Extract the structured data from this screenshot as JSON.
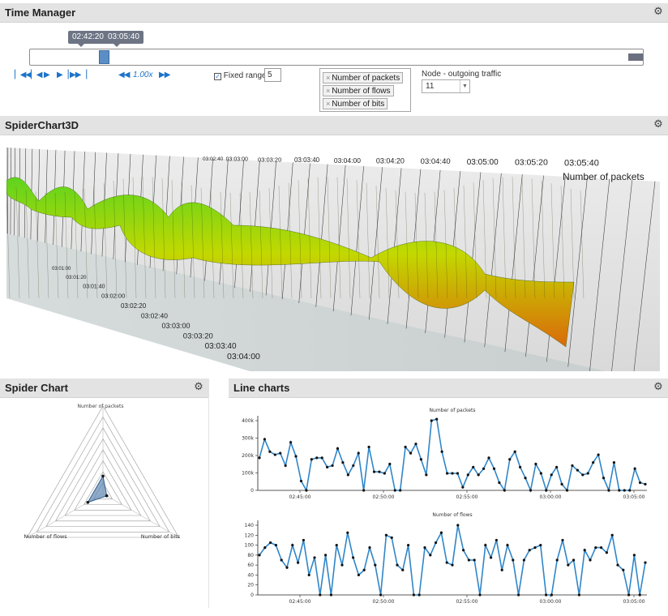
{
  "time_manager": {
    "title": "Time Manager",
    "range_start": "02:42:20",
    "range_end": "03:05:40",
    "speed": "1.00x",
    "fixed_range_label": "Fixed range:",
    "fixed_range_value": "5",
    "metrics": [
      "Number of packets",
      "Number of flows",
      "Number of bits"
    ],
    "node_label": "Node - outgoing traffic",
    "node_value": "11"
  },
  "spider3d": {
    "title": "SpiderChart3D",
    "top_times": [
      "03:02:40",
      "03:03:00",
      "03:03:20",
      "03:03:40",
      "03:04:00",
      "03:04:20",
      "03:04:40",
      "03:05:00",
      "03:05:20",
      "03:05:40"
    ],
    "metric_label": "Number of packets",
    "left_times": [
      "03:01:00",
      "03:01:20",
      "03:01:40",
      "03:02:00",
      "03:02:20",
      "03:02:40",
      "03:03:00",
      "03:03:20",
      "03:03:40",
      "03:04:00"
    ]
  },
  "spider": {
    "title": "Spider Chart",
    "axes": [
      "Number of packets",
      "Number of flows",
      "Number of bits"
    ]
  },
  "line_charts": {
    "title": "Line charts",
    "x_ticks": [
      "02:45:00",
      "02:50:00",
      "02:55:00",
      "03:00:00",
      "03:05:00"
    ]
  },
  "chart_data": [
    {
      "type": "line",
      "title": "Number of packets",
      "y_ticks": [
        "0",
        "100k",
        "200k",
        "300k",
        "400k"
      ],
      "ylim": [
        0,
        450000
      ],
      "x_ticks": [
        "02:45:00",
        "02:50:00",
        "02:55:00",
        "03:00:00",
        "03:05:00"
      ],
      "values": [
        210000,
        330000,
        250000,
        230000,
        240000,
        160000,
        310000,
        220000,
        60000,
        0,
        200000,
        210000,
        210000,
        150000,
        160000,
        270000,
        180000,
        100000,
        160000,
        240000,
        0,
        280000,
        120000,
        120000,
        110000,
        170000,
        0,
        0,
        280000,
        240000,
        300000,
        200000,
        100000,
        450000,
        460000,
        250000,
        110000,
        110000,
        110000,
        20000,
        100000,
        150000,
        100000,
        140000,
        210000,
        140000,
        50000,
        0,
        200000,
        250000,
        150000,
        80000,
        0,
        170000,
        110000,
        0,
        100000,
        150000,
        40000,
        0,
        160000,
        130000,
        100000,
        110000,
        180000,
        230000,
        80000,
        0,
        180000,
        0,
        0,
        0,
        140000,
        50000,
        40000
      ]
    },
    {
      "type": "line",
      "title": "Number of flows",
      "y_ticks": [
        "0",
        "20",
        "40",
        "60",
        "80",
        "100",
        "120",
        "140"
      ],
      "ylim": [
        0,
        140
      ],
      "x_ticks": [
        "02:45:00",
        "02:50:00",
        "02:55:00",
        "03:00:00",
        "03:05:00"
      ],
      "values": [
        80,
        95,
        105,
        100,
        70,
        55,
        100,
        65,
        110,
        40,
        75,
        0,
        80,
        0,
        100,
        60,
        125,
        75,
        40,
        50,
        95,
        60,
        0,
        120,
        115,
        60,
        50,
        100,
        0,
        0,
        95,
        80,
        105,
        125,
        65,
        60,
        140,
        90,
        70,
        70,
        0,
        100,
        75,
        110,
        50,
        100,
        70,
        0,
        70,
        90,
        95,
        100,
        0,
        0,
        70,
        110,
        60,
        70,
        0,
        90,
        70,
        95,
        95,
        85,
        120,
        60,
        50,
        0,
        80,
        0,
        65
      ]
    },
    {
      "type": "scatter",
      "title": "Spider Chart",
      "axes": [
        "Number of packets",
        "Number of flows",
        "Number of bits"
      ],
      "values": [
        0.2,
        0.2,
        0.05
      ]
    }
  ]
}
